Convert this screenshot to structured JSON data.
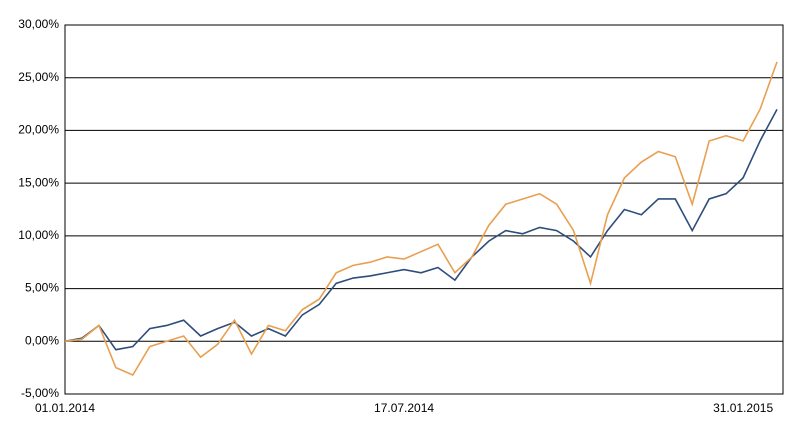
{
  "chart_data": {
    "type": "line",
    "categories": [
      "01.01.2014",
      null,
      null,
      null,
      null,
      null,
      null,
      null,
      null,
      null,
      null,
      null,
      null,
      null,
      null,
      null,
      null,
      null,
      null,
      null,
      "17.07.2014",
      null,
      null,
      null,
      null,
      null,
      null,
      null,
      null,
      null,
      null,
      null,
      null,
      null,
      null,
      null,
      null,
      null,
      null,
      null,
      "31.01.2015",
      null,
      null
    ],
    "series": [
      {
        "color": "#2e4d7b",
        "values": [
          0,
          0.3,
          1.5,
          -0.8,
          -0.5,
          1.2,
          1.5,
          2.0,
          0.5,
          1.2,
          1.8,
          0.5,
          1.2,
          0.5,
          2.5,
          3.5,
          5.5,
          6.0,
          6.2,
          6.5,
          6.8,
          6.5,
          7.0,
          5.8,
          8.0,
          9.5,
          10.5,
          10.2,
          10.8,
          10.5,
          9.5,
          8.0,
          10.5,
          12.5,
          12.0,
          13.5,
          13.5,
          10.5,
          13.5,
          14.0,
          15.5,
          19.0,
          22.0
        ]
      },
      {
        "color": "#e8a050",
        "values": [
          0,
          0.2,
          1.5,
          -2.5,
          -3.2,
          -0.5,
          0,
          0.5,
          -1.5,
          -0.3,
          2.0,
          -1.2,
          1.5,
          1.0,
          3.0,
          4.0,
          6.5,
          7.2,
          7.5,
          8.0,
          7.8,
          8.5,
          9.2,
          6.5,
          8.0,
          11.0,
          13.0,
          13.5,
          14.0,
          13.0,
          10.5,
          5.5,
          12.0,
          15.5,
          17.0,
          18.0,
          17.5,
          13.0,
          19.0,
          19.5,
          19.0,
          22.0,
          26.5
        ]
      }
    ],
    "ylim": [
      -5,
      30
    ],
    "yticks": [
      {
        "value": -5,
        "label": "-5,00%"
      },
      {
        "value": 0,
        "label": "0,00%"
      },
      {
        "value": 5,
        "label": "5,00%"
      },
      {
        "value": 10,
        "label": "10,00%"
      },
      {
        "value": 15,
        "label": "15,00%"
      },
      {
        "value": 20,
        "label": "20,00%"
      },
      {
        "value": 25,
        "label": "25,00%"
      },
      {
        "value": 30,
        "label": "30,00%"
      }
    ],
    "grid": true
  }
}
